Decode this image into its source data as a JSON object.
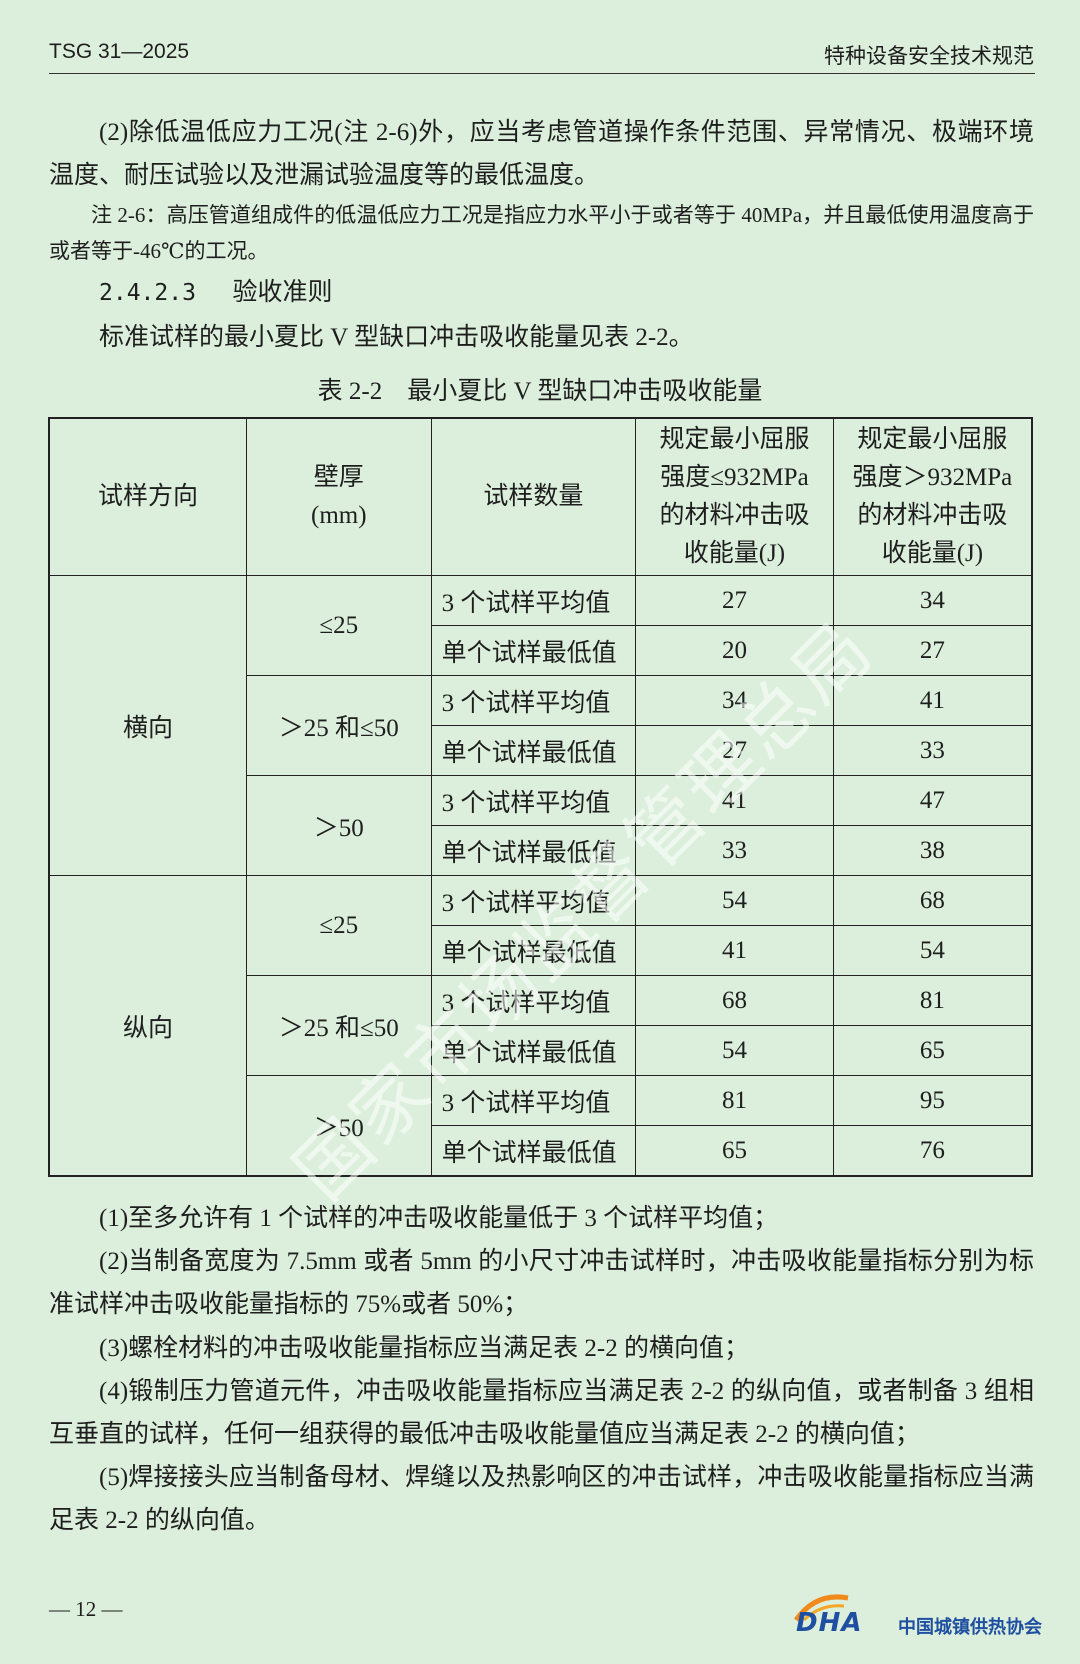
{
  "header": {
    "left": "TSG 31—2025",
    "right": "特种设备安全技术规范"
  },
  "body": {
    "paragraph_1": "(2)除低温低应力工况(注 2-6)外，应当考虑管道操作条件范围、异常情况、极端环境温度、耐压试验以及泄漏试验温度等的最低温度。",
    "note": "注 2-6：高压管道组成件的低温低应力工况是指应力水平小于或者等于 40MPa，并且最低使用温度高于或者等于-46℃的工况。",
    "section_number": "2.4.2.3",
    "section_title": "验收准则",
    "paragraph_2": "标准试样的最小夏比 V 型缺口冲击吸收能量见表 2-2。"
  },
  "table": {
    "caption": "表 2-2　最小夏比 V 型缺口冲击吸收能量",
    "headers": [
      "试样方向",
      "壁厚\n(mm)",
      "试样数量",
      "规定最小屈服\n强度≤932MPa\n的材料冲击吸\n收能量(J)",
      "规定最小屈服\n强度＞932MPa\n的材料冲击吸\n收能量(J)"
    ],
    "groups": [
      {
        "direction": "横向",
        "thicknesses": [
          {
            "label": "≤25",
            "rows": [
              {
                "sample": "3 个试样平均值",
                "energy_le_932": 27,
                "energy_gt_932": 34
              },
              {
                "sample": "单个试样最低值",
                "energy_le_932": 20,
                "energy_gt_932": 27
              }
            ]
          },
          {
            "label": "＞25 和≤50",
            "rows": [
              {
                "sample": "3 个试样平均值",
                "energy_le_932": 34,
                "energy_gt_932": 41
              },
              {
                "sample": "单个试样最低值",
                "energy_le_932": 27,
                "energy_gt_932": 33
              }
            ]
          },
          {
            "label": "＞50",
            "rows": [
              {
                "sample": "3 个试样平均值",
                "energy_le_932": 41,
                "energy_gt_932": 47
              },
              {
                "sample": "单个试样最低值",
                "energy_le_932": 33,
                "energy_gt_932": 38
              }
            ]
          }
        ]
      },
      {
        "direction": "纵向",
        "thicknesses": [
          {
            "label": "≤25",
            "rows": [
              {
                "sample": "3 个试样平均值",
                "energy_le_932": 54,
                "energy_gt_932": 68
              },
              {
                "sample": "单个试样最低值",
                "energy_le_932": 41,
                "energy_gt_932": 54
              }
            ]
          },
          {
            "label": "＞25 和≤50",
            "rows": [
              {
                "sample": "3 个试样平均值",
                "energy_le_932": 68,
                "energy_gt_932": 81
              },
              {
                "sample": "单个试样最低值",
                "energy_le_932": 54,
                "energy_gt_932": 65
              }
            ]
          },
          {
            "label": "＞50",
            "rows": [
              {
                "sample": "3 个试样平均值",
                "energy_le_932": 81,
                "energy_gt_932": 95
              },
              {
                "sample": "单个试样最低值",
                "energy_le_932": 65,
                "energy_gt_932": 76
              }
            ]
          }
        ]
      }
    ]
  },
  "notes": [
    "(1)至多允许有 1 个试样的冲击吸收能量低于 3 个试样平均值；",
    "(2)当制备宽度为 7.5mm 或者 5mm 的小尺寸冲击试样时，冲击吸收能量指标分别为标准试样冲击吸收能量指标的 75%或者 50%；",
    "(3)螺栓材料的冲击吸收能量指标应当满足表 2-2 的横向值；",
    "(4)锻制压力管道元件，冲击吸收能量指标应当满足表 2-2 的纵向值，或者制备 3 组相互垂直的试样，任何一组获得的最低冲击吸收能量值应当满足表 2-2 的横向值；",
    "(5)焊接接头应当制备母材、焊缝以及热影响区的冲击试样，冲击吸收能量指标应当满足表 2-2 的纵向值。"
  ],
  "watermark": "国家市场监督管理总局",
  "footer": {
    "page": "— 12 —",
    "logo_mark": "DHA",
    "organization": "中国城镇供热协会"
  }
}
